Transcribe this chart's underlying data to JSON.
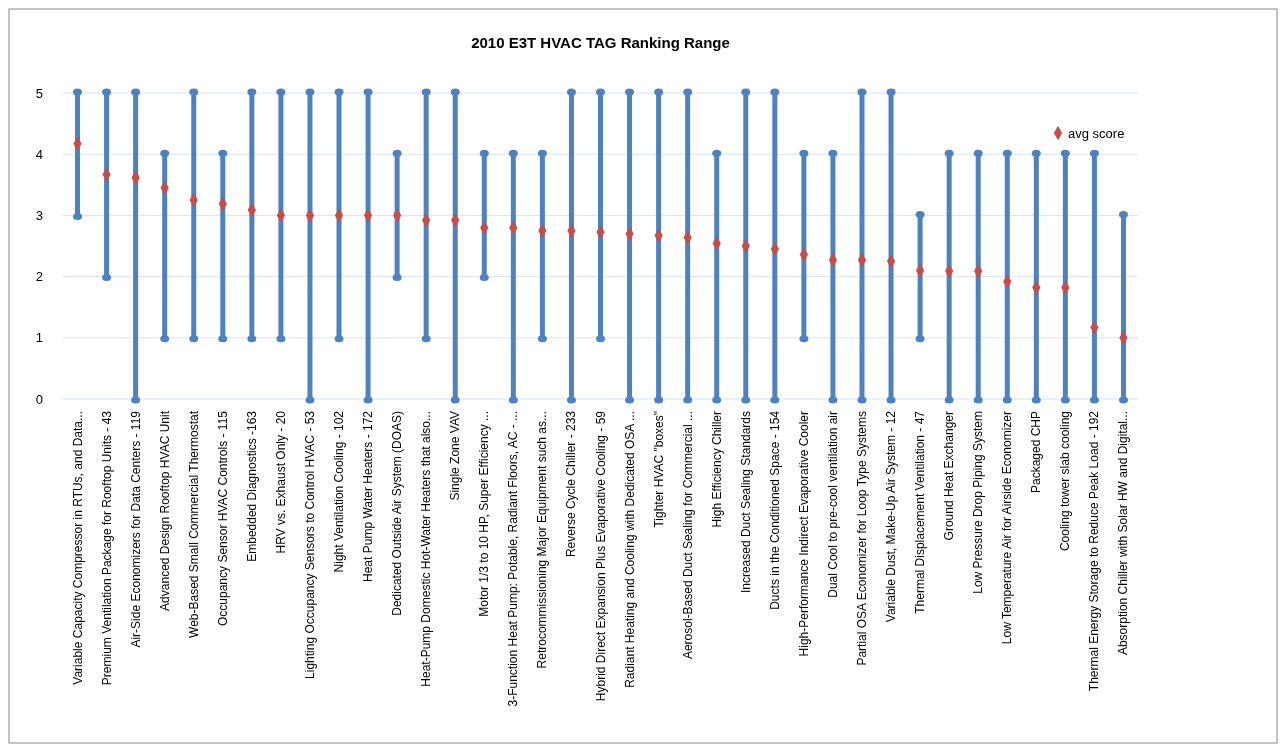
{
  "chart_data": {
    "type": "bar",
    "title": "2010 E3T HVAC TAG Ranking Range",
    "categories": [
      "Variable Capacity Compressor in RTUs, and Data...",
      "Premium Ventilation Package for Rooftop  Units - 43",
      "Air-Side Economizers for  Data Centers - 119",
      "Advanced Design Rooftop HVAC Unit",
      "Web-Based Small Commercial Thermostat",
      "Occupancy Sensor HVAC Controls - 115",
      "Embedded Diagnostics -163",
      "HRV vs. Exhaust Only - 20",
      "Lighting Occupancy Sensors to Control HVAC - 53",
      "Night Ventilation Cooling - 102",
      "Heat Pump Water Heaters - 172",
      "Dedicated Outside Air  System (DOAS)",
      "Heat-Pump Domestic Hot-Water Heaters that also...",
      "Single Zone VAV",
      "Motor 1/3 to 10 HP, Super  Efficiency ...",
      "3-Function Heat Pump:  Potable, Radiant Floors, AC - ...",
      "Retrocommissioning Major Equipment  such as...",
      "Reverse Cycle Chiller - 233",
      "Hybrid Direct Expansion Plus Evaporative Cooling - 59",
      "Radiant Heating and Cooling with Dedicated OSA ...",
      "Tighter HVAC \"boxes\"",
      "Aerosol-Based Duct Sealing for Commercial ...",
      "High Efficiency Chiller",
      "Increased Duct Sealing Standards",
      "Ducts in the Conditioned  Space - 154",
      "High-Performance Indirect Evaporative Cooler",
      "Dual Cool to pre-cool ventilation air",
      "Partial OSA Economizer for Loop Type Systems",
      "Variable Dust, Make-Up Air System - 12",
      "Thermal Displacement Ventilation - 47",
      "Ground Heat Exchanger",
      "Low Pressure Drop Piping System",
      "Low Temperature Air for Airside Economizer",
      "Packaged CHP",
      "Cooling tower slab cooling",
      "Thermal Energy Storage to Reduce Peak Load - 192",
      "Absorption Chiller with Solar HW and Digital..."
    ],
    "series": [
      {
        "color": "#4f81bd",
        "base": [
          3,
          2,
          0,
          1,
          1,
          1,
          1,
          1,
          0,
          1,
          0,
          2,
          1,
          0,
          2,
          0,
          1,
          0,
          1,
          0,
          0,
          0,
          0,
          0,
          0,
          1,
          0,
          0,
          0,
          1,
          0,
          0,
          0,
          0,
          0,
          0,
          0
        ],
        "values": [
          2,
          3,
          5,
          3,
          4,
          3,
          4,
          4,
          5,
          4,
          5,
          2,
          4,
          5,
          2,
          4,
          3,
          5,
          4,
          5,
          5,
          5,
          4,
          5,
          5,
          3,
          4,
          5,
          5,
          2,
          4,
          4,
          4,
          4,
          4,
          4,
          3
        ]
      },
      {
        "type": "scatter",
        "name": "avg score",
        "color": "#c0504d",
        "marker": "diamond",
        "values": [
          4.17,
          3.67,
          3.62,
          3.45,
          3.25,
          3.19,
          3.09,
          3.0,
          3.0,
          3.0,
          3.0,
          3.0,
          2.92,
          2.92,
          2.8,
          2.8,
          2.75,
          2.75,
          2.73,
          2.7,
          2.67,
          2.64,
          2.54,
          2.5,
          2.45,
          2.36,
          2.27,
          2.27,
          2.25,
          2.1,
          2.09,
          2.09,
          1.92,
          1.82,
          1.82,
          1.17,
          1.0
        ]
      }
    ],
    "ylim": [
      0,
      5
    ],
    "yticks": [
      0,
      1,
      2,
      3,
      4,
      5
    ],
    "grid": "y",
    "legend": "top right"
  }
}
